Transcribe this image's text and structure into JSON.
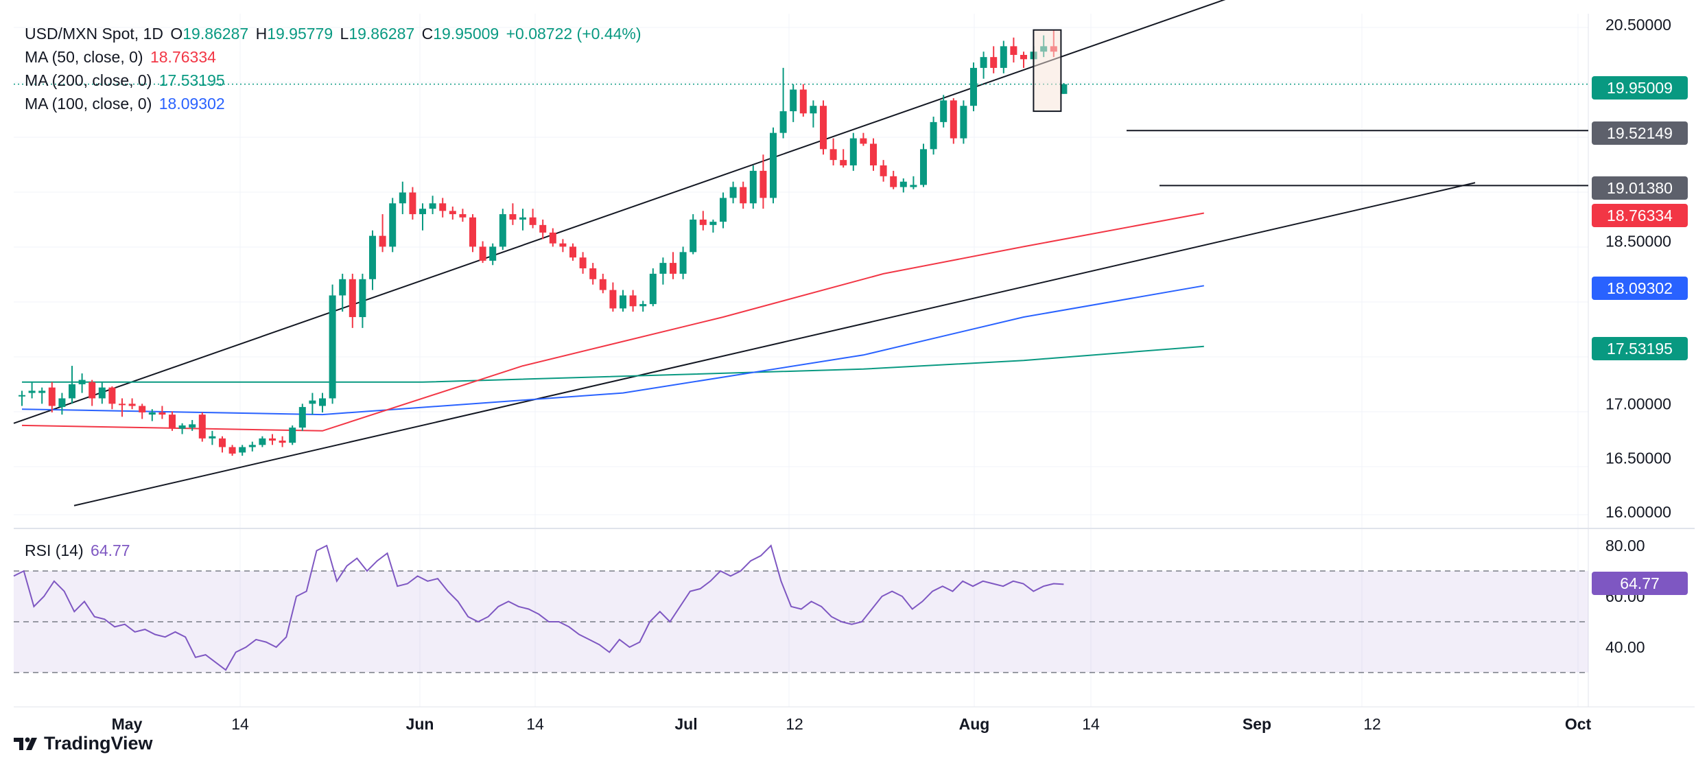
{
  "header": {
    "symbol": "USD/MXN Spot, 1D",
    "o_label": "O",
    "o": "19.86287",
    "h_label": "H",
    "h": "19.95779",
    "l_label": "L",
    "l": "19.86287",
    "c_label": "C",
    "c": "19.95009",
    "change": "+0.08722 (+0.44%)"
  },
  "indicators": [
    {
      "label": "MA (50, close, 0)",
      "value": "18.76334",
      "color": "#f23645"
    },
    {
      "label": "MA (200, close, 0)",
      "value": "17.53195",
      "color": "#089981"
    },
    {
      "label": "MA (100, close, 0)",
      "value": "18.09302",
      "color": "#2962ff"
    }
  ],
  "rsi": {
    "label": "RSI (14)",
    "value": "64.77",
    "color": "#7e57c2"
  },
  "price_tags": [
    {
      "value": "19.95009",
      "color": "#089981"
    },
    {
      "value": "19.52149",
      "color": "#5d606b"
    },
    {
      "value": "19.01380",
      "color": "#5d606b"
    },
    {
      "value": "18.76334",
      "color": "#f23645"
    },
    {
      "value": "18.09302",
      "color": "#2962ff"
    },
    {
      "value": "17.53195",
      "color": "#089981"
    }
  ],
  "brand": "TradingView",
  "chart_data": {
    "type": "candlestick",
    "title": "USD/MXN Spot, 1D",
    "ylim": [
      15.9,
      20.6
    ],
    "y_ticks": [
      "20.50000",
      "18.50000",
      "17.00000",
      "16.50000",
      "16.00000"
    ],
    "x_ticks": [
      "May",
      "14",
      "Jun",
      "14",
      "Jul",
      "12",
      "Aug",
      "14",
      "Sep",
      "12",
      "Oct"
    ],
    "candles": [
      [
        17.07,
        17.12,
        16.98,
        17.08
      ],
      [
        17.1,
        17.2,
        17.05,
        17.12
      ],
      [
        17.1,
        17.15,
        17.0,
        17.12
      ],
      [
        17.15,
        17.2,
        16.92,
        16.98
      ],
      [
        16.97,
        17.1,
        16.9,
        17.05
      ],
      [
        17.05,
        17.35,
        17.0,
        17.18
      ],
      [
        17.18,
        17.28,
        17.1,
        17.22
      ],
      [
        17.2,
        17.22,
        16.98,
        17.05
      ],
      [
        17.05,
        17.2,
        17.0,
        17.15
      ],
      [
        17.15,
        17.16,
        16.95,
        17.0
      ],
      [
        17.0,
        17.05,
        16.88,
        16.99
      ],
      [
        17.0,
        17.05,
        16.95,
        16.98
      ],
      [
        16.98,
        17.0,
        16.86,
        16.92
      ],
      [
        16.9,
        16.95,
        16.84,
        16.92
      ],
      [
        16.92,
        16.98,
        16.86,
        16.9
      ],
      [
        16.9,
        16.93,
        16.75,
        16.77
      ],
      [
        16.77,
        16.82,
        16.72,
        16.8
      ],
      [
        16.78,
        16.85,
        16.75,
        16.81
      ],
      [
        16.9,
        16.92,
        16.65,
        16.68
      ],
      [
        16.68,
        16.75,
        16.62,
        16.7
      ],
      [
        16.68,
        16.7,
        16.55,
        16.6
      ],
      [
        16.6,
        16.62,
        16.52,
        16.54
      ],
      [
        16.55,
        16.62,
        16.52,
        16.6
      ],
      [
        16.6,
        16.65,
        16.56,
        16.62
      ],
      [
        16.62,
        16.7,
        16.6,
        16.68
      ],
      [
        16.68,
        16.72,
        16.62,
        16.66
      ],
      [
        16.66,
        16.7,
        16.6,
        16.64
      ],
      [
        16.64,
        16.8,
        16.62,
        16.78
      ],
      [
        16.78,
        17.0,
        16.75,
        16.97
      ],
      [
        17.0,
        17.1,
        16.9,
        17.03
      ],
      [
        16.98,
        17.1,
        16.92,
        17.05
      ],
      [
        17.05,
        18.1,
        17.0,
        18.0
      ],
      [
        18.0,
        18.2,
        17.85,
        18.15
      ],
      [
        18.15,
        18.2,
        17.7,
        17.8
      ],
      [
        17.8,
        18.2,
        17.7,
        18.15
      ],
      [
        18.15,
        18.6,
        18.05,
        18.55
      ],
      [
        18.55,
        18.75,
        18.4,
        18.45
      ],
      [
        18.45,
        18.9,
        18.4,
        18.85
      ],
      [
        18.85,
        19.05,
        18.75,
        18.95
      ],
      [
        18.95,
        19.0,
        18.7,
        18.75
      ],
      [
        18.75,
        18.85,
        18.6,
        18.8
      ],
      [
        18.8,
        18.92,
        18.75,
        18.85
      ],
      [
        18.85,
        18.9,
        18.72,
        18.78
      ],
      [
        18.78,
        18.82,
        18.7,
        18.75
      ],
      [
        18.75,
        18.8,
        18.68,
        18.72
      ],
      [
        18.72,
        18.75,
        18.4,
        18.45
      ],
      [
        18.45,
        18.5,
        18.3,
        18.32
      ],
      [
        18.32,
        18.48,
        18.28,
        18.45
      ],
      [
        18.45,
        18.8,
        18.42,
        18.75
      ],
      [
        18.75,
        18.85,
        18.65,
        18.7
      ],
      [
        18.7,
        18.8,
        18.6,
        18.72
      ],
      [
        18.72,
        18.8,
        18.62,
        18.65
      ],
      [
        18.65,
        18.7,
        18.52,
        18.58
      ],
      [
        18.58,
        18.62,
        18.45,
        18.48
      ],
      [
        18.48,
        18.52,
        18.4,
        18.45
      ],
      [
        18.45,
        18.48,
        18.32,
        18.35
      ],
      [
        18.35,
        18.4,
        18.2,
        18.25
      ],
      [
        18.25,
        18.3,
        18.1,
        18.15
      ],
      [
        18.15,
        18.2,
        18.02,
        18.05
      ],
      [
        18.05,
        18.12,
        17.85,
        17.88
      ],
      [
        17.88,
        18.05,
        17.85,
        18.0
      ],
      [
        18.0,
        18.05,
        17.85,
        17.9
      ],
      [
        17.9,
        17.95,
        17.85,
        17.92
      ],
      [
        17.92,
        18.25,
        17.9,
        18.2
      ],
      [
        18.2,
        18.35,
        18.1,
        18.3
      ],
      [
        18.3,
        18.4,
        18.15,
        18.2
      ],
      [
        18.2,
        18.45,
        18.15,
        18.4
      ],
      [
        18.4,
        18.75,
        18.38,
        18.7
      ],
      [
        18.7,
        18.78,
        18.6,
        18.65
      ],
      [
        18.65,
        18.7,
        18.58,
        18.68
      ],
      [
        18.68,
        18.95,
        18.62,
        18.9
      ],
      [
        18.9,
        19.05,
        18.85,
        19.0
      ],
      [
        19.0,
        19.05,
        18.8,
        18.85
      ],
      [
        18.85,
        19.2,
        18.8,
        19.15
      ],
      [
        19.15,
        19.3,
        18.8,
        18.9
      ],
      [
        18.9,
        19.55,
        18.85,
        19.5
      ],
      [
        19.5,
        20.1,
        19.45,
        19.7
      ],
      [
        19.7,
        19.95,
        19.6,
        19.9
      ],
      [
        19.9,
        19.95,
        19.65,
        19.68
      ],
      [
        19.68,
        19.8,
        19.55,
        19.75
      ],
      [
        19.75,
        19.8,
        19.3,
        19.35
      ],
      [
        19.35,
        19.45,
        19.2,
        19.25
      ],
      [
        19.25,
        19.35,
        19.18,
        19.2
      ],
      [
        19.2,
        19.5,
        19.15,
        19.45
      ],
      [
        19.45,
        19.5,
        19.38,
        19.4
      ],
      [
        19.4,
        19.45,
        19.15,
        19.2
      ],
      [
        19.2,
        19.25,
        19.05,
        19.1
      ],
      [
        19.1,
        19.15,
        18.98,
        19.0
      ],
      [
        19.0,
        19.08,
        18.95,
        19.05
      ],
      [
        19.0,
        19.1,
        18.98,
        19.02
      ],
      [
        19.02,
        19.4,
        19.0,
        19.35
      ],
      [
        19.35,
        19.65,
        19.3,
        19.6
      ],
      [
        19.6,
        19.85,
        19.55,
        19.8
      ],
      [
        19.8,
        19.82,
        19.4,
        19.45
      ],
      [
        19.45,
        19.8,
        19.4,
        19.75
      ],
      [
        19.75,
        20.15,
        19.7,
        20.1
      ],
      [
        20.1,
        20.25,
        20.0,
        20.2
      ],
      [
        20.2,
        20.3,
        20.05,
        20.1
      ],
      [
        20.1,
        20.35,
        20.05,
        20.3
      ],
      [
        20.3,
        20.38,
        20.15,
        20.22
      ],
      [
        20.22,
        20.25,
        20.1,
        20.18
      ],
      [
        20.18,
        20.3,
        20.12,
        20.25
      ],
      [
        20.25,
        20.4,
        20.2,
        20.3
      ],
      [
        20.3,
        20.45,
        20.2,
        20.25
      ],
      [
        19.86,
        19.96,
        19.86,
        19.95
      ]
    ],
    "ma50": [
      [
        0,
        16.8
      ],
      [
        30,
        16.75
      ],
      [
        50,
        17.35
      ],
      [
        70,
        17.8
      ],
      [
        86,
        18.2
      ],
      [
        100,
        18.45
      ],
      [
        118,
        18.76
      ]
    ],
    "ma100": [
      [
        0,
        16.95
      ],
      [
        30,
        16.9
      ],
      [
        60,
        17.1
      ],
      [
        84,
        17.45
      ],
      [
        100,
        17.8
      ],
      [
        118,
        18.09
      ]
    ],
    "ma200": [
      [
        0,
        17.2
      ],
      [
        40,
        17.2
      ],
      [
        84,
        17.32
      ],
      [
        100,
        17.4
      ],
      [
        118,
        17.53
      ]
    ],
    "rsi_values": [
      68,
      70,
      56,
      60,
      66,
      62,
      54,
      58,
      52,
      51,
      48,
      49,
      46,
      47,
      45,
      44,
      46,
      44,
      36,
      37,
      34,
      31,
      38,
      40,
      43,
      42,
      40,
      44,
      60,
      62,
      78,
      80,
      66,
      72,
      75,
      70,
      74,
      77,
      64,
      65,
      68,
      66,
      67,
      62,
      58,
      52,
      50,
      52,
      56,
      58,
      56,
      55,
      53,
      50,
      50,
      48,
      45,
      43,
      41,
      38,
      43,
      40,
      42,
      50,
      54,
      50,
      56,
      62,
      63,
      66,
      70,
      68,
      70,
      74,
      76,
      80,
      66,
      56,
      55,
      58,
      56,
      52,
      50,
      49,
      50,
      55,
      60,
      62,
      60,
      55,
      58,
      62,
      64,
      62,
      66,
      64,
      66,
      65,
      64,
      66,
      65,
      62,
      64,
      65,
      64.77
    ],
    "rsi_levels": [
      70,
      50,
      30
    ],
    "rsi_ticks": [
      "80.00",
      "60.00",
      "40.00"
    ],
    "horizontal_levels": [
      19.52149,
      19.0138
    ]
  }
}
